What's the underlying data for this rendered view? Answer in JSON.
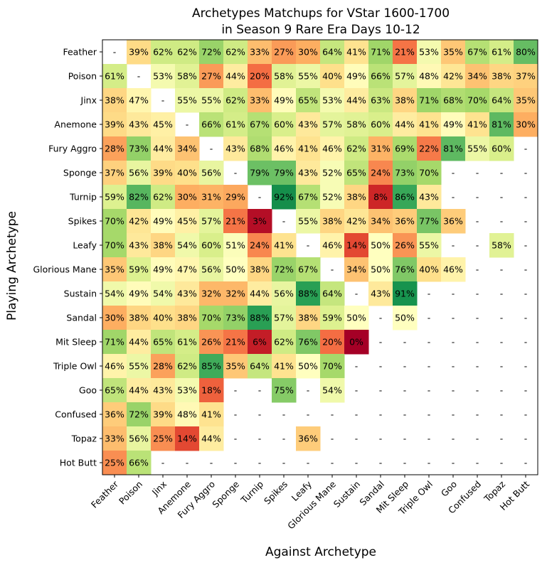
{
  "chart_data": {
    "type": "heatmap",
    "title": [
      "Archetypes Matchups for VStar 1600-1700",
      "in Season 9 Rare Era Days 10-12"
    ],
    "xlabel": "Against Archetype",
    "ylabel": "Playing Archetype",
    "value_range": [
      0,
      100
    ],
    "missing_label": "-",
    "value_suffix": "%",
    "colormap": "RdYlGn",
    "x_categories": [
      "Feather",
      "Poison",
      "Jinx",
      "Anemone",
      "Fury Aggro",
      "Sponge",
      "Turnip",
      "Spikes",
      "Leafy",
      "Glorious Mane",
      "Sustain",
      "Sandal",
      "Mit Sleep",
      "Triple Owl",
      "Goo",
      "Confused",
      "Topaz",
      "Hot Butt"
    ],
    "y_categories": [
      "Feather",
      "Poison",
      "Jinx",
      "Anemone",
      "Fury Aggro",
      "Sponge",
      "Turnip",
      "Spikes",
      "Leafy",
      "Glorious Mane",
      "Sustain",
      "Sandal",
      "Mit Sleep",
      "Triple Owl",
      "Goo",
      "Confused",
      "Topaz",
      "Hot Butt"
    ],
    "values": [
      [
        null,
        39,
        62,
        62,
        72,
        62,
        33,
        27,
        30,
        64,
        41,
        71,
        21,
        53,
        35,
        67,
        61,
        80
      ],
      [
        61,
        null,
        53,
        58,
        27,
        44,
        20,
        58,
        55,
        40,
        49,
        66,
        57,
        48,
        42,
        34,
        38,
        37
      ],
      [
        38,
        47,
        null,
        55,
        55,
        62,
        33,
        49,
        65,
        53,
        44,
        63,
        38,
        71,
        68,
        70,
        64,
        35
      ],
      [
        39,
        43,
        45,
        null,
        66,
        61,
        67,
        60,
        43,
        57,
        58,
        60,
        44,
        41,
        49,
        41,
        81,
        30
      ],
      [
        28,
        73,
        44,
        34,
        null,
        43,
        68,
        46,
        41,
        46,
        62,
        31,
        69,
        22,
        81,
        55,
        60,
        null
      ],
      [
        37,
        56,
        39,
        40,
        56,
        null,
        79,
        79,
        43,
        52,
        65,
        24,
        73,
        70,
        null,
        null,
        null,
        null
      ],
      [
        59,
        82,
        62,
        30,
        31,
        29,
        null,
        92,
        67,
        52,
        38,
        8,
        86,
        43,
        null,
        null,
        null,
        null
      ],
      [
        70,
        42,
        49,
        45,
        57,
        21,
        3,
        null,
        55,
        38,
        42,
        34,
        36,
        77,
        36,
        null,
        null,
        null
      ],
      [
        70,
        43,
        38,
        54,
        60,
        51,
        24,
        41,
        null,
        46,
        14,
        50,
        26,
        55,
        null,
        null,
        58,
        null
      ],
      [
        35,
        59,
        49,
        47,
        56,
        50,
        38,
        72,
        67,
        null,
        34,
        50,
        76,
        40,
        46,
        null,
        null,
        null
      ],
      [
        54,
        49,
        54,
        43,
        32,
        32,
        44,
        56,
        88,
        64,
        null,
        43,
        91,
        null,
        null,
        null,
        null,
        null
      ],
      [
        30,
        38,
        40,
        38,
        70,
        73,
        88,
        57,
        38,
        59,
        50,
        null,
        50,
        null,
        null,
        null,
        null,
        null
      ],
      [
        71,
        44,
        65,
        61,
        26,
        21,
        6,
        62,
        76,
        20,
        0,
        null,
        null,
        null,
        null,
        null,
        null,
        null
      ],
      [
        46,
        55,
        28,
        62,
        85,
        35,
        64,
        41,
        50,
        70,
        null,
        null,
        null,
        null,
        null,
        null,
        null,
        null
      ],
      [
        65,
        44,
        43,
        53,
        18,
        null,
        null,
        75,
        null,
        54,
        null,
        null,
        null,
        null,
        null,
        null,
        null,
        null
      ],
      [
        36,
        72,
        39,
        48,
        41,
        null,
        null,
        null,
        null,
        null,
        null,
        null,
        null,
        null,
        null,
        null,
        null,
        null
      ],
      [
        33,
        56,
        25,
        14,
        44,
        null,
        null,
        null,
        36,
        null,
        null,
        null,
        null,
        null,
        null,
        null,
        null,
        null
      ],
      [
        25,
        66,
        null,
        null,
        null,
        null,
        null,
        null,
        null,
        null,
        null,
        null,
        null,
        null,
        null,
        null,
        null,
        null
      ]
    ]
  }
}
